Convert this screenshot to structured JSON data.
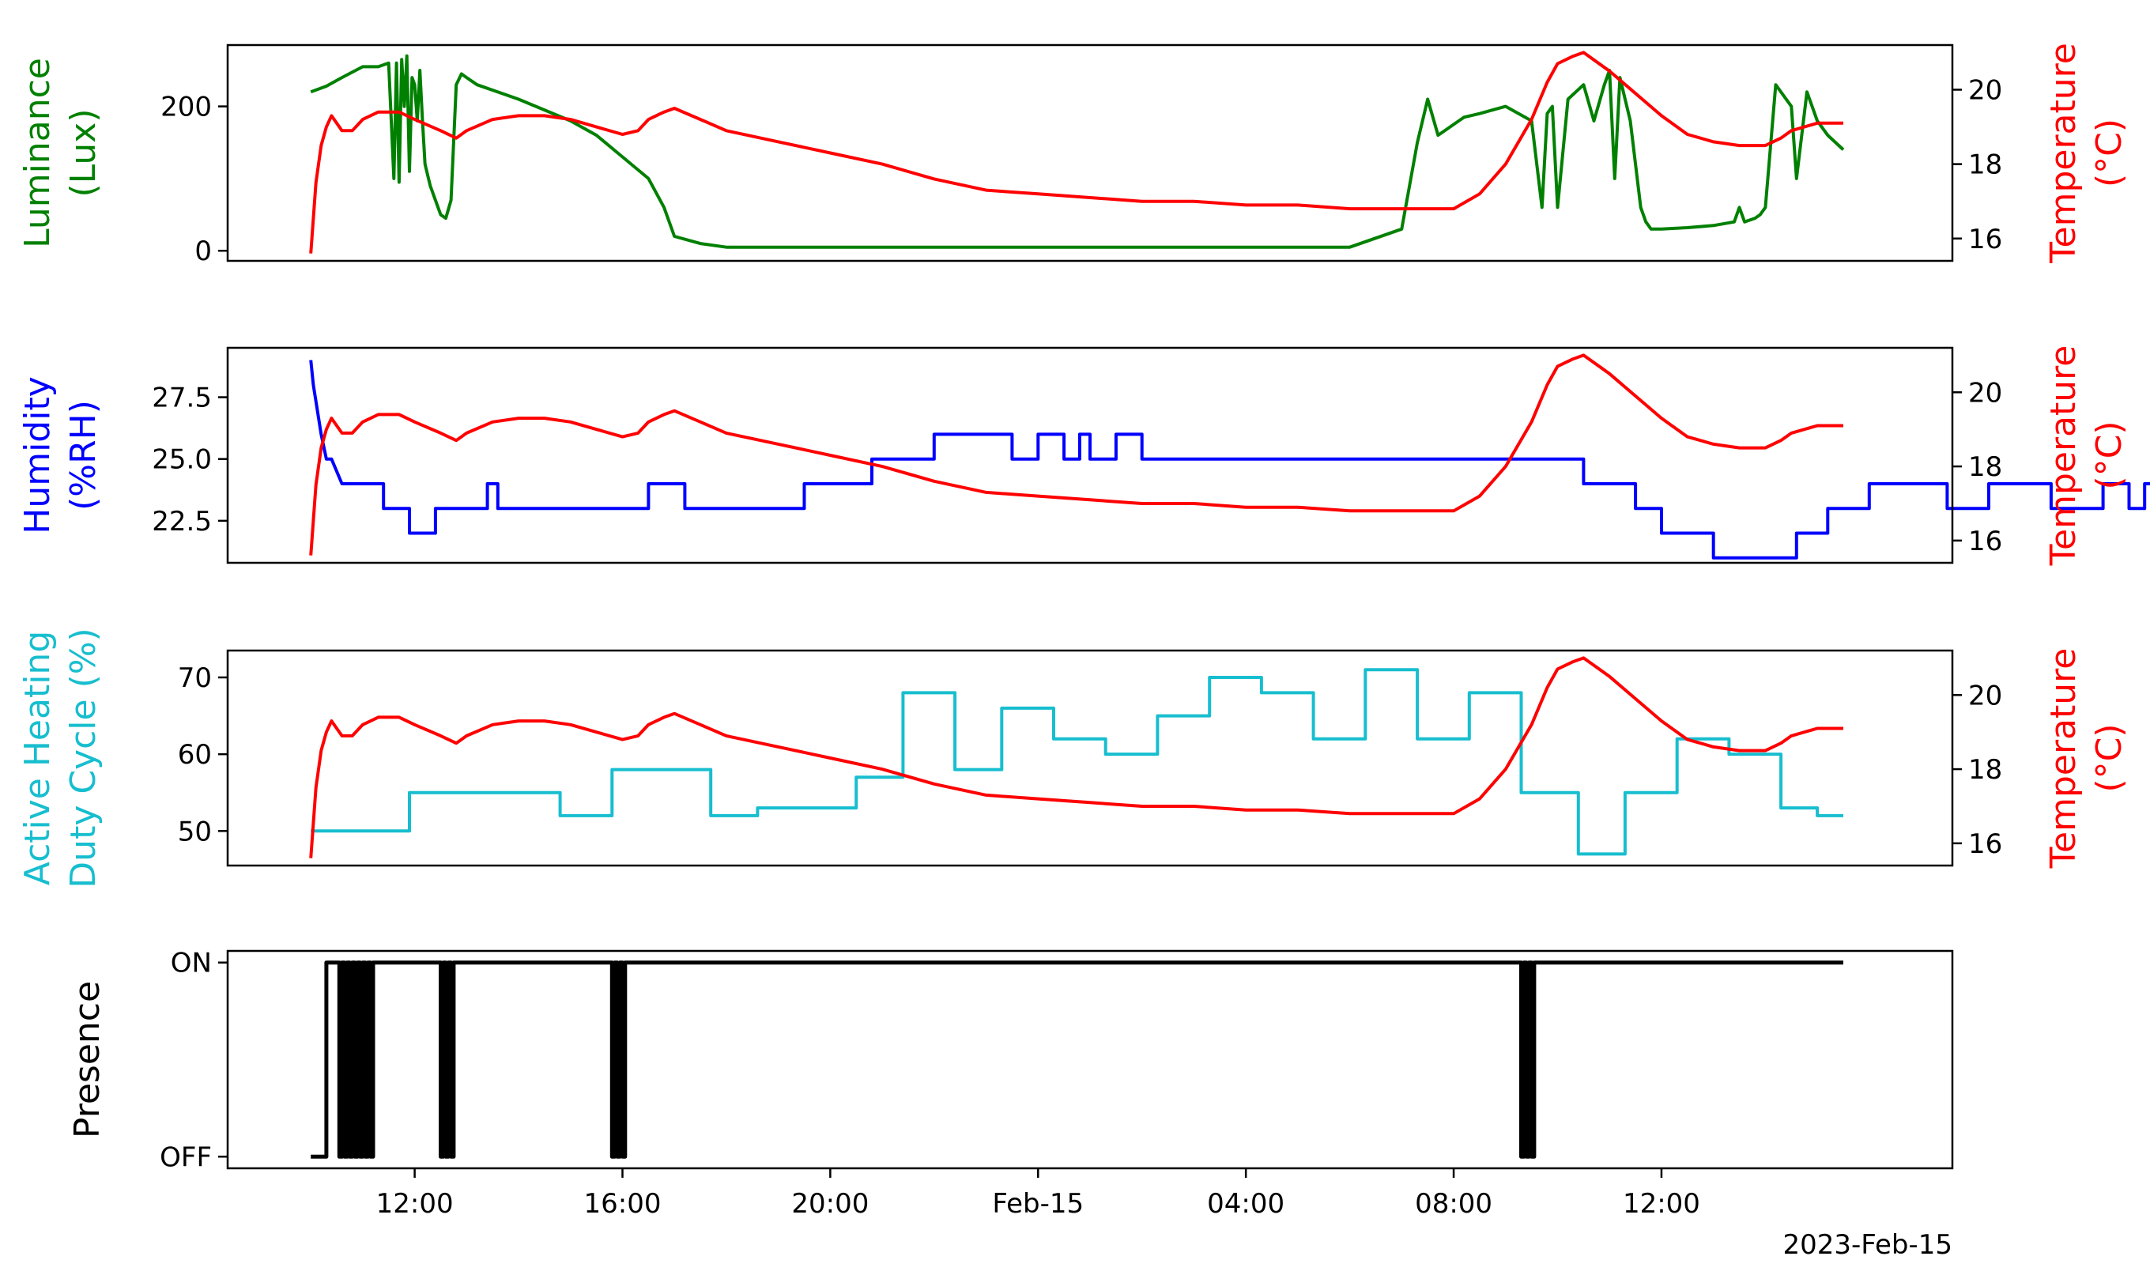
{
  "chart_data": [
    {
      "type": "line",
      "ylabel_left": [
        "Luminance",
        "(Lux)"
      ],
      "ylabel_right": [
        "Temperature",
        "(°C)"
      ],
      "left_color": "#008000",
      "right_color": "#ff0000",
      "left_ticks": [
        {
          "v": 0,
          "label": "0"
        },
        {
          "v": 200,
          "label": "200"
        }
      ],
      "left_ylim": [
        -14,
        285
      ],
      "right_ylim": [
        15.4,
        21.2
      ],
      "series": [
        {
          "axis": "left",
          "color": "#008000",
          "x": [
            10.0,
            10.3,
            10.6,
            11.0,
            11.3,
            11.5,
            11.6,
            11.65,
            11.7,
            11.75,
            11.8,
            11.85,
            11.9,
            11.95,
            12.0,
            12.05,
            12.1,
            12.15,
            12.2,
            12.3,
            12.4,
            12.5,
            12.6,
            12.7,
            12.8,
            12.9,
            13.0,
            13.2,
            14.0,
            15.0,
            15.5,
            16.0,
            16.5,
            16.8,
            17.0,
            17.5,
            18.0,
            20.0,
            24.0,
            28.0,
            30.0,
            31.0,
            31.3,
            31.5,
            31.7,
            31.9,
            32.0,
            32.1,
            32.2,
            32.5,
            33.0,
            33.5,
            33.7,
            33.8,
            33.9,
            34.0,
            34.2,
            34.5,
            34.7,
            34.9,
            35.0,
            35.1,
            35.2,
            35.4,
            35.6,
            35.7,
            35.8,
            36.0,
            36.5,
            37.0,
            37.4,
            37.5,
            37.6,
            37.8,
            37.9,
            38.0,
            38.2,
            38.5,
            38.6,
            38.8,
            39.0,
            39.2,
            39.5
          ],
          "y": [
            220,
            228,
            240,
            255,
            255,
            260,
            100,
            260,
            95,
            265,
            200,
            270,
            110,
            240,
            230,
            180,
            250,
            180,
            120,
            90,
            70,
            50,
            45,
            70,
            230,
            245,
            240,
            230,
            210,
            180,
            160,
            130,
            100,
            60,
            20,
            10,
            5,
            5,
            5,
            5,
            5,
            30,
            150,
            210,
            160,
            170,
            175,
            180,
            185,
            190,
            200,
            180,
            60,
            190,
            200,
            60,
            210,
            230,
            180,
            230,
            250,
            100,
            240,
            180,
            60,
            40,
            30,
            30,
            32,
            35,
            40,
            60,
            40,
            45,
            50,
            60,
            230,
            200,
            100,
            220,
            180,
            160,
            140
          ]
        },
        {
          "axis": "right",
          "color": "#ff0000",
          "x": [
            10.0,
            10.1,
            10.2,
            10.3,
            10.4,
            10.5,
            10.6,
            10.8,
            11.0,
            11.3,
            11.7,
            12.0,
            12.5,
            12.8,
            13.0,
            13.5,
            14.0,
            14.5,
            15.0,
            15.5,
            16.0,
            16.3,
            16.5,
            16.8,
            17.0,
            17.5,
            18.0,
            19.0,
            20.0,
            21.0,
            22.0,
            23.0,
            24.0,
            25.0,
            26.0,
            27.0,
            28.0,
            29.0,
            30.0,
            31.0,
            31.5,
            32.0,
            32.5,
            33.0,
            33.5,
            33.8,
            34.0,
            34.3,
            34.5,
            35.0,
            35.5,
            36.0,
            36.5,
            37.0,
            37.5,
            38.0,
            38.3,
            38.5,
            39.0,
            39.5
          ],
          "y": [
            15.6,
            17.5,
            18.5,
            19.0,
            19.3,
            19.1,
            18.9,
            18.9,
            19.2,
            19.4,
            19.4,
            19.2,
            18.9,
            18.7,
            18.9,
            19.2,
            19.3,
            19.3,
            19.2,
            19.0,
            18.8,
            18.9,
            19.2,
            19.4,
            19.5,
            19.2,
            18.9,
            18.6,
            18.3,
            18.0,
            17.6,
            17.3,
            17.2,
            17.1,
            17.0,
            17.0,
            16.9,
            16.9,
            16.8,
            16.8,
            16.8,
            16.8,
            17.2,
            18.0,
            19.2,
            20.2,
            20.7,
            20.9,
            21.0,
            20.5,
            19.9,
            19.3,
            18.8,
            18.6,
            18.5,
            18.5,
            18.7,
            18.9,
            19.1,
            19.1
          ]
        }
      ]
    },
    {
      "type": "line",
      "ylabel_left": [
        "Humidity",
        "(%RH)"
      ],
      "ylabel_right": [
        "Temperature",
        "(°C)"
      ],
      "left_color": "#0000ff",
      "right_color": "#ff0000",
      "left_ticks": [
        {
          "v": 22.5,
          "label": "22.5"
        },
        {
          "v": 25.0,
          "label": "25.0"
        },
        {
          "v": 27.5,
          "label": "27.5"
        }
      ],
      "left_ylim": [
        20.8,
        29.5
      ],
      "right_ylim": [
        15.4,
        21.2
      ],
      "series": [
        {
          "axis": "left",
          "color": "#0000ff",
          "x": [
            10.0,
            10.05,
            10.2,
            10.3,
            10.4,
            10.6,
            11.4,
            11.4,
            11.9,
            11.9,
            12.4,
            12.4,
            13.4,
            13.4,
            13.6,
            13.6,
            16.5,
            16.5,
            17.2,
            17.2,
            19.5,
            19.5,
            20.8,
            20.8,
            22.0,
            22.0,
            23.5,
            23.5,
            24.0,
            24.0,
            24.5,
            24.5,
            24.8,
            24.8,
            25.0,
            25.0,
            25.5,
            25.5,
            26.0,
            26.0,
            34.5,
            34.5,
            35.5,
            35.5,
            36.0,
            36.0,
            37.0,
            37.0,
            38.6,
            38.6,
            39.2,
            39.2,
            40.0,
            40.0,
            41.5,
            41.5,
            42.3,
            42.3,
            43.5,
            43.5,
            44.5,
            44.5,
            45.0,
            45.0,
            45.3,
            45.3,
            45.5
          ],
          "y": [
            29,
            28,
            26,
            25,
            25,
            24,
            24,
            23,
            23,
            22,
            22,
            23,
            23,
            24,
            24,
            23,
            23,
            24,
            24,
            23,
            23,
            24,
            24,
            25,
            25,
            26,
            26,
            25,
            25,
            26,
            26,
            25,
            25,
            26,
            26,
            25,
            25,
            26,
            26,
            25,
            25,
            24,
            24,
            23,
            23,
            22,
            22,
            21,
            21,
            22,
            22,
            23,
            23,
            24,
            24,
            23,
            23,
            24,
            24,
            23,
            23,
            24,
            24,
            23,
            23,
            24,
            24
          ]
        },
        {
          "axis": "right",
          "color": "#ff0000",
          "x": [
            10.0,
            10.1,
            10.2,
            10.3,
            10.4,
            10.5,
            10.6,
            10.8,
            11.0,
            11.3,
            11.7,
            12.0,
            12.5,
            12.8,
            13.0,
            13.5,
            14.0,
            14.5,
            15.0,
            15.5,
            16.0,
            16.3,
            16.5,
            16.8,
            17.0,
            17.5,
            18.0,
            19.0,
            20.0,
            21.0,
            22.0,
            23.0,
            24.0,
            25.0,
            26.0,
            27.0,
            28.0,
            29.0,
            30.0,
            31.0,
            31.5,
            32.0,
            32.5,
            33.0,
            33.5,
            33.8,
            34.0,
            34.3,
            34.5,
            35.0,
            35.5,
            36.0,
            36.5,
            37.0,
            37.5,
            38.0,
            38.3,
            38.5,
            39.0,
            39.5
          ],
          "y": [
            15.6,
            17.5,
            18.5,
            19.0,
            19.3,
            19.1,
            18.9,
            18.9,
            19.2,
            19.4,
            19.4,
            19.2,
            18.9,
            18.7,
            18.9,
            19.2,
            19.3,
            19.3,
            19.2,
            19.0,
            18.8,
            18.9,
            19.2,
            19.4,
            19.5,
            19.2,
            18.9,
            18.6,
            18.3,
            18.0,
            17.6,
            17.3,
            17.2,
            17.1,
            17.0,
            17.0,
            16.9,
            16.9,
            16.8,
            16.8,
            16.8,
            16.8,
            17.2,
            18.0,
            19.2,
            20.2,
            20.7,
            20.9,
            21.0,
            20.5,
            19.9,
            19.3,
            18.8,
            18.6,
            18.5,
            18.5,
            18.7,
            18.9,
            19.1,
            19.1
          ]
        }
      ]
    },
    {
      "type": "line",
      "ylabel_left": [
        "Active Heating",
        "Duty Cycle (%)"
      ],
      "ylabel_right": [
        "Temperature",
        "(°C)"
      ],
      "left_color": "#17becf",
      "right_color": "#ff0000",
      "left_ticks": [
        {
          "v": 50,
          "label": "50"
        },
        {
          "v": 60,
          "label": "60"
        },
        {
          "v": 70,
          "label": "70"
        }
      ],
      "left_ylim": [
        45.5,
        73.5
      ],
      "right_ylim": [
        15.4,
        21.2
      ],
      "series": [
        {
          "axis": "left",
          "color": "#17becf",
          "x": [
            10.0,
            11.9,
            11.9,
            14.8,
            14.8,
            15.8,
            15.8,
            17.7,
            17.7,
            18.6,
            18.6,
            20.5,
            20.5,
            21.4,
            21.4,
            22.4,
            22.4,
            23.3,
            23.3,
            24.3,
            24.3,
            25.3,
            25.3,
            26.3,
            26.3,
            27.3,
            27.3,
            28.3,
            28.3,
            29.3,
            29.3,
            30.3,
            30.3,
            31.3,
            31.3,
            32.3,
            32.3,
            33.3,
            33.3,
            34.4,
            34.4,
            35.3,
            35.3,
            36.3,
            36.3,
            37.3,
            37.3,
            38.3,
            38.3,
            39.0,
            39.0,
            39.5
          ],
          "y": [
            50,
            50,
            55,
            55,
            52,
            52,
            58,
            58,
            52,
            52,
            53,
            53,
            57,
            57,
            68,
            68,
            58,
            58,
            66,
            66,
            62,
            62,
            60,
            60,
            65,
            65,
            70,
            70,
            68,
            68,
            62,
            62,
            71,
            71,
            62,
            62,
            68,
            68,
            55,
            55,
            47,
            47,
            55,
            55,
            62,
            62,
            60,
            60,
            53,
            53,
            52,
            52
          ]
        },
        {
          "axis": "right",
          "color": "#ff0000",
          "x": [
            10.0,
            10.1,
            10.2,
            10.3,
            10.4,
            10.5,
            10.6,
            10.8,
            11.0,
            11.3,
            11.7,
            12.0,
            12.5,
            12.8,
            13.0,
            13.5,
            14.0,
            14.5,
            15.0,
            15.5,
            16.0,
            16.3,
            16.5,
            16.8,
            17.0,
            17.5,
            18.0,
            19.0,
            20.0,
            21.0,
            22.0,
            23.0,
            24.0,
            25.0,
            26.0,
            27.0,
            28.0,
            29.0,
            30.0,
            31.0,
            31.5,
            32.0,
            32.5,
            33.0,
            33.5,
            33.8,
            34.0,
            34.3,
            34.5,
            35.0,
            35.5,
            36.0,
            36.5,
            37.0,
            37.5,
            38.0,
            38.3,
            38.5,
            39.0,
            39.5
          ],
          "y": [
            15.6,
            17.5,
            18.5,
            19.0,
            19.3,
            19.1,
            18.9,
            18.9,
            19.2,
            19.4,
            19.4,
            19.2,
            18.9,
            18.7,
            18.9,
            19.2,
            19.3,
            19.3,
            19.2,
            19.0,
            18.8,
            18.9,
            19.2,
            19.4,
            19.5,
            19.2,
            18.9,
            18.6,
            18.3,
            18.0,
            17.6,
            17.3,
            17.2,
            17.1,
            17.0,
            17.0,
            16.9,
            16.9,
            16.8,
            16.8,
            16.8,
            16.8,
            17.2,
            18.0,
            19.2,
            20.2,
            20.7,
            20.9,
            21.0,
            20.5,
            19.9,
            19.3,
            18.8,
            18.6,
            18.5,
            18.5,
            18.7,
            18.9,
            19.1,
            19.1
          ]
        }
      ]
    },
    {
      "type": "line",
      "ylabel_left": [
        "Presence"
      ],
      "left_color": "#000000",
      "left_ticks": [
        {
          "v": 0,
          "label": "OFF"
        },
        {
          "v": 1,
          "label": "ON"
        }
      ],
      "left_ylim": [
        -0.06,
        1.06
      ],
      "series": [
        {
          "axis": "left",
          "color": "#000000",
          "x": [
            10.0,
            10.3,
            10.3,
            10.55,
            10.55,
            10.6,
            10.6,
            10.65,
            10.65,
            10.7,
            10.7,
            10.75,
            10.75,
            10.8,
            10.8,
            10.85,
            10.85,
            10.9,
            10.9,
            10.95,
            10.95,
            11.0,
            11.0,
            11.05,
            11.05,
            11.1,
            11.1,
            11.15,
            11.15,
            11.2,
            11.2,
            12.5,
            12.5,
            12.55,
            12.55,
            12.6,
            12.6,
            12.65,
            12.65,
            12.7,
            12.7,
            12.75,
            12.75,
            15.8,
            15.8,
            15.85,
            15.85,
            15.9,
            15.9,
            15.95,
            15.95,
            16.0,
            16.0,
            16.05,
            16.05,
            33.3,
            33.3,
            33.35,
            33.35,
            33.4,
            33.4,
            33.45,
            33.45,
            33.5,
            33.5,
            33.55,
            33.55,
            39.5
          ],
          "y": [
            0,
            0,
            1,
            1,
            0,
            0,
            1,
            1,
            0,
            0,
            1,
            1,
            0,
            0,
            1,
            1,
            0,
            0,
            1,
            1,
            0,
            0,
            1,
            1,
            0,
            0,
            1,
            1,
            0,
            0,
            1,
            1,
            0,
            0,
            1,
            1,
            0,
            0,
            1,
            1,
            0,
            0,
            1,
            1,
            0,
            0,
            1,
            1,
            0,
            0,
            1,
            1,
            0,
            0,
            1,
            1,
            0,
            0,
            1,
            1,
            0,
            0,
            1,
            1,
            0,
            0,
            1,
            1
          ]
        }
      ]
    }
  ],
  "x_axis": {
    "range_hours": [
      8.4,
      41.6
    ],
    "ticks": [
      {
        "h": 12,
        "label": "12:00"
      },
      {
        "h": 16,
        "label": "16:00"
      },
      {
        "h": 20,
        "label": "20:00"
      },
      {
        "h": 24,
        "label": "Feb-15"
      },
      {
        "h": 28,
        "label": "04:00"
      },
      {
        "h": 32,
        "label": "08:00"
      },
      {
        "h": 36,
        "label": "12:00"
      }
    ],
    "offset_label": "2023-Feb-15"
  },
  "temperature_ticks": [
    {
      "v": 16,
      "label": "16"
    },
    {
      "v": 18,
      "label": "18"
    },
    {
      "v": 20,
      "label": "20"
    }
  ]
}
